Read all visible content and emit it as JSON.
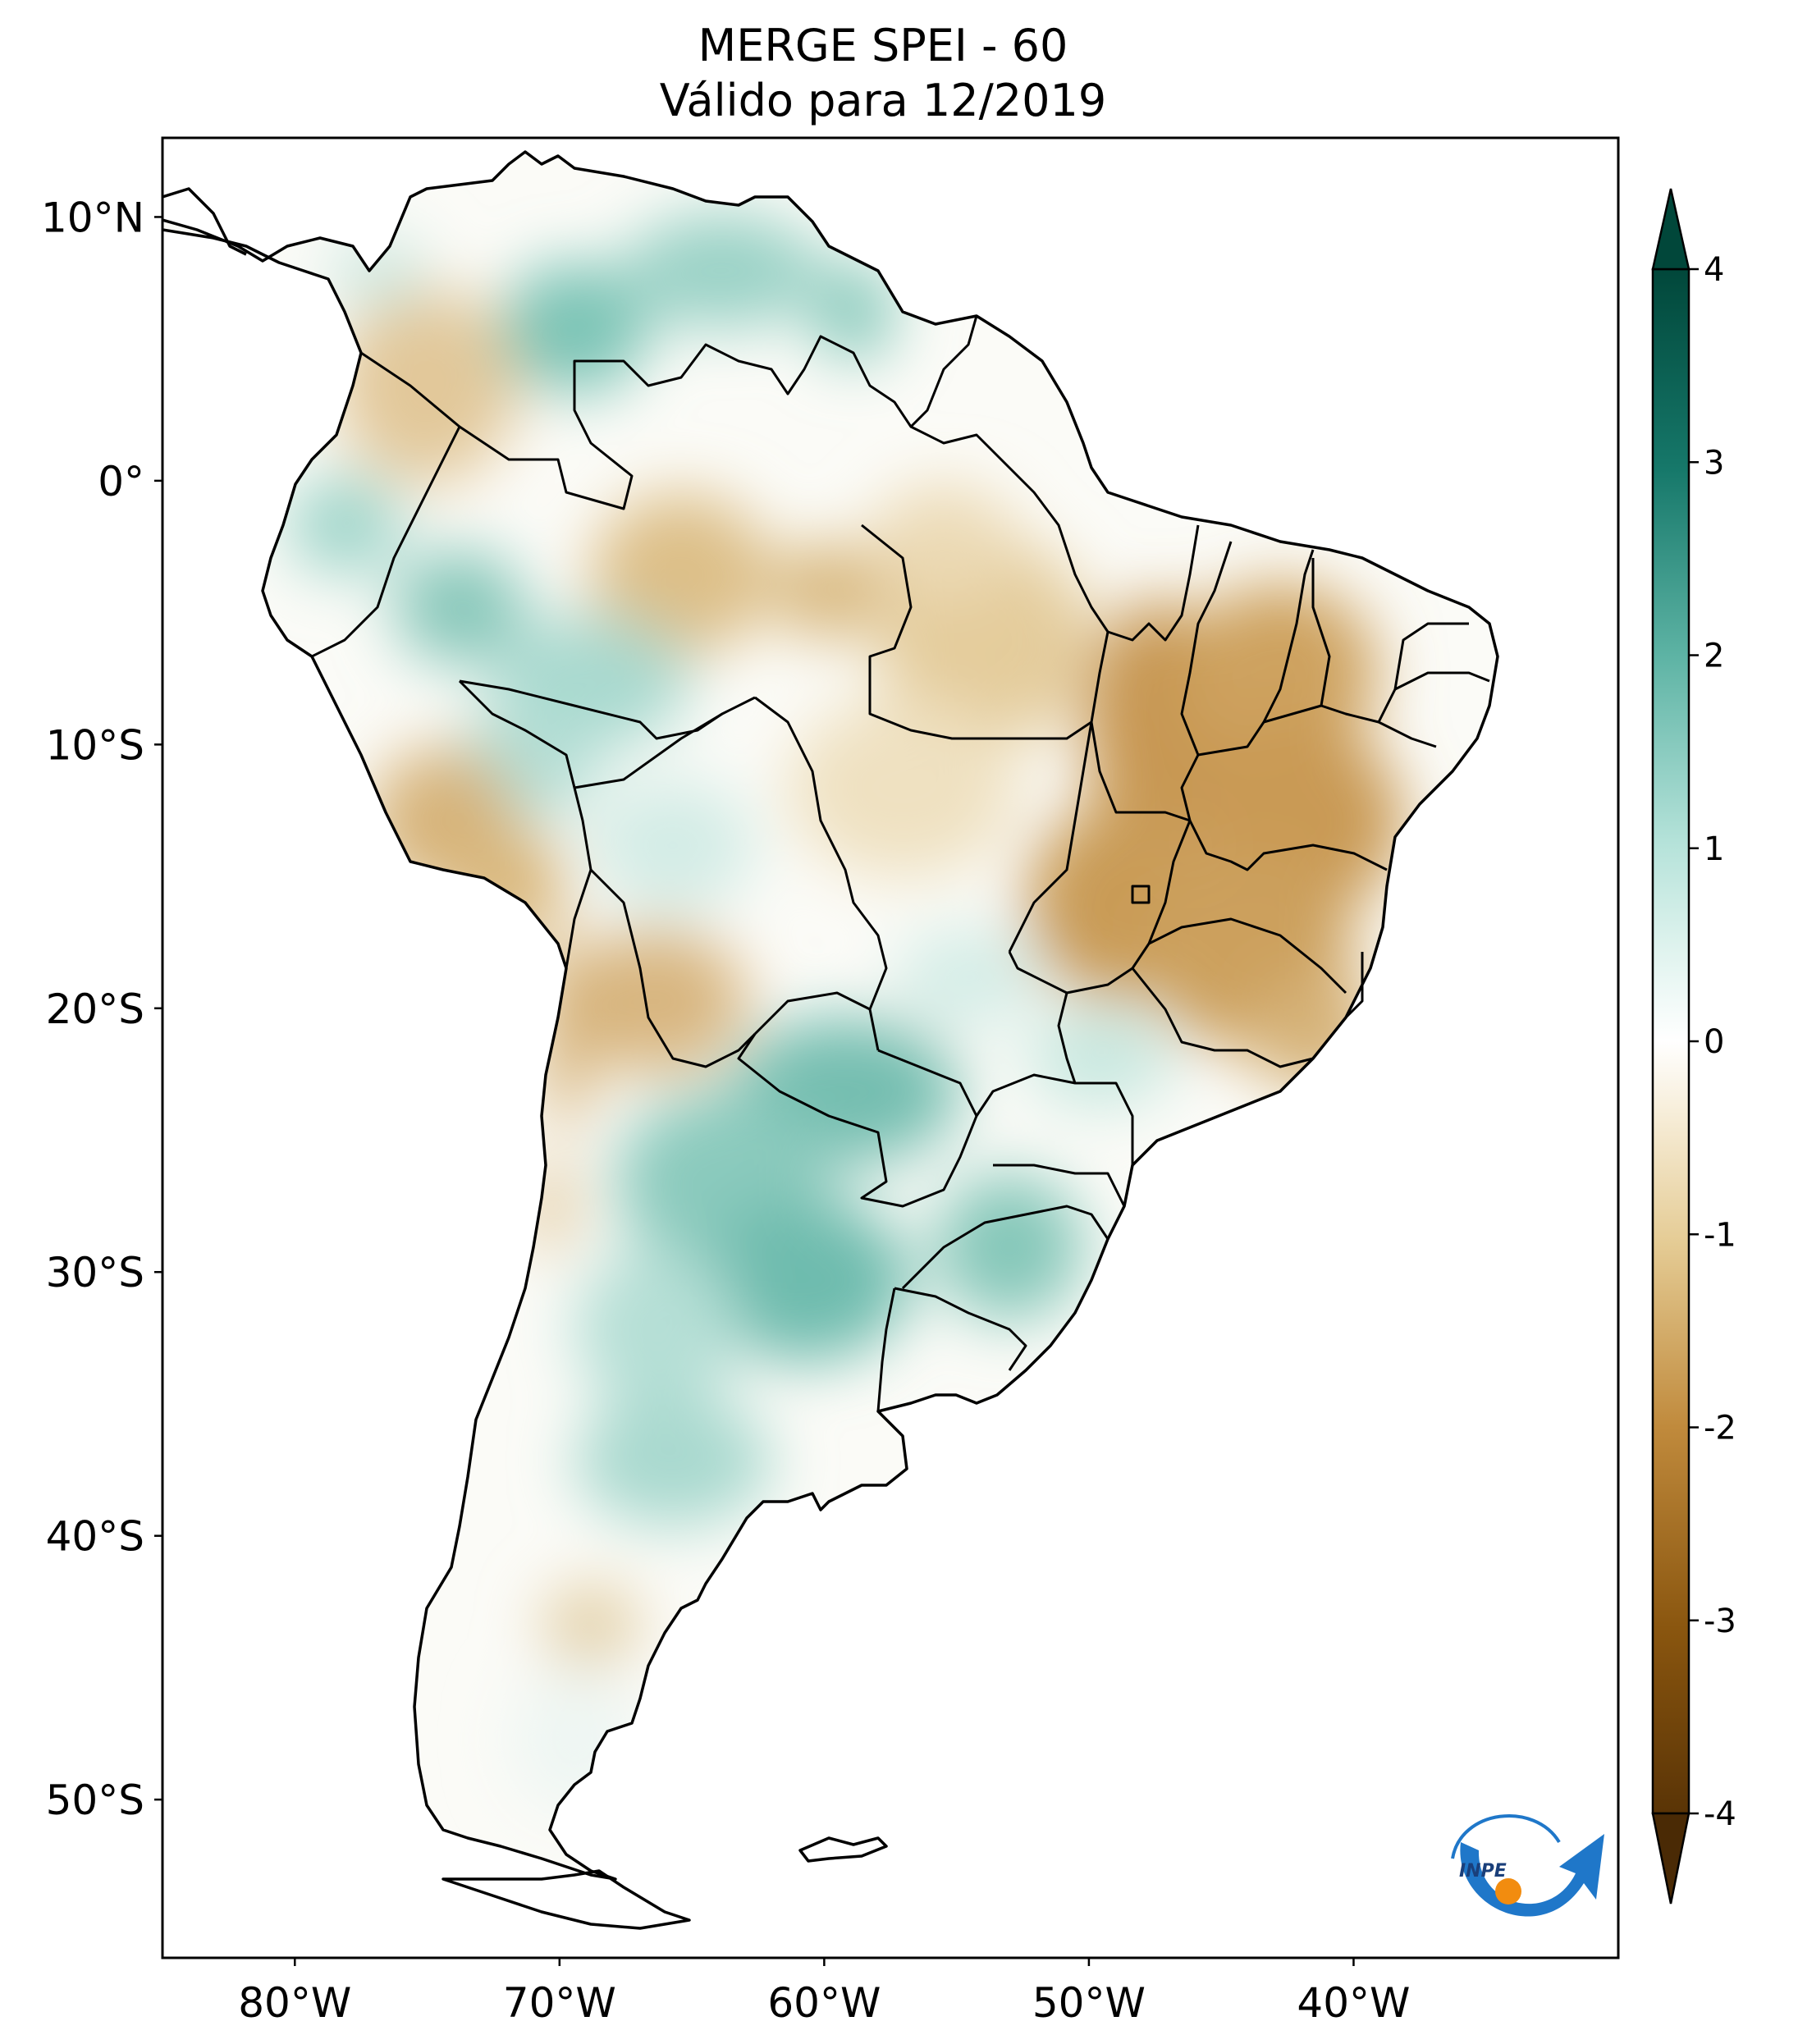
{
  "title": {
    "line1": "MERGE   SPEI - 60",
    "line2": "Válido para 12/2019"
  },
  "map": {
    "lon_range": [
      -85,
      -30
    ],
    "lat_range": [
      -56,
      13
    ],
    "x_ticks": [
      {
        "value": -80,
        "label": "80°W"
      },
      {
        "value": -70,
        "label": "70°W"
      },
      {
        "value": -60,
        "label": "60°W"
      },
      {
        "value": -50,
        "label": "50°W"
      },
      {
        "value": -40,
        "label": "40°W"
      }
    ],
    "y_ticks": [
      {
        "value": 10,
        "label": "10°N"
      },
      {
        "value": 0,
        "label": "0°"
      },
      {
        "value": -10,
        "label": "10°S"
      },
      {
        "value": -20,
        "label": "20°S"
      },
      {
        "value": -30,
        "label": "30°S"
      },
      {
        "value": -40,
        "label": "40°S"
      },
      {
        "value": -50,
        "label": "50°S"
      }
    ]
  },
  "colorbar": {
    "range": [
      -4,
      4
    ],
    "ticks": [
      {
        "value": 4,
        "label": "4"
      },
      {
        "value": 3,
        "label": "3"
      },
      {
        "value": 2,
        "label": "2"
      },
      {
        "value": 1,
        "label": "1"
      },
      {
        "value": 0,
        "label": "0"
      },
      {
        "value": -1,
        "label": "-1"
      },
      {
        "value": -2,
        "label": "-2"
      },
      {
        "value": -3,
        "label": "-3"
      },
      {
        "value": -4,
        "label": "-4"
      }
    ],
    "colors": [
      "#3d2305",
      "#7a4a0b",
      "#b07a2e",
      "#d9b76f",
      "#f2e3bf",
      "#ffffff",
      "#c5ece4",
      "#71c3b5",
      "#2a8f80",
      "#014f40",
      "#00362c"
    ]
  },
  "logo": {
    "text": "INPE",
    "blue": "#1f77c9",
    "orange": "#f28c0f"
  }
}
